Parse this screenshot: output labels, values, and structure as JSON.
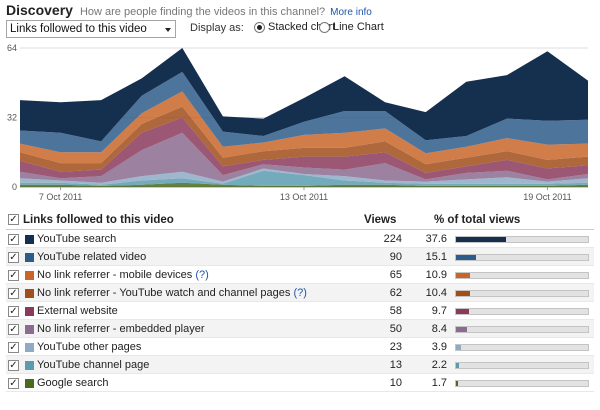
{
  "header": {
    "title": "Discovery",
    "subtitle": "How are people finding the videos in this channel?",
    "more_info": "More info"
  },
  "controls": {
    "dropdown_value": "Links followed to this video",
    "display_label": "Display as:",
    "stacked_label": "Stacked chart",
    "line_label": "Line Chart",
    "selected": "stacked"
  },
  "chart_data": {
    "type": "area",
    "stacked": true,
    "x_ticks": [
      "7 Oct 2011",
      "13 Oct 2011",
      "19 Oct 2011"
    ],
    "y_ticks": [
      "64",
      "32",
      "0"
    ],
    "ylim": [
      0,
      64
    ],
    "grid": true,
    "x": [
      "6 Oct 2011",
      "7 Oct 2011",
      "8 Oct 2011",
      "9 Oct 2011",
      "10 Oct 2011",
      "11 Oct 2011",
      "12 Oct 2011",
      "13 Oct 2011",
      "14 Oct 2011",
      "15 Oct 2011",
      "16 Oct 2011",
      "17 Oct 2011",
      "18 Oct 2011",
      "19 Oct 2011",
      "20 Oct 2011"
    ],
    "series": [
      {
        "name": "Google search",
        "color": "#4a6a1e",
        "values": [
          1,
          1,
          0.5,
          1,
          2,
          1,
          0.5,
          0.5,
          1,
          1,
          0.5,
          0.5,
          0.5,
          0.5,
          1
        ]
      },
      {
        "name": "YouTube channel page",
        "color": "#5a9bb0",
        "values": [
          1,
          1,
          0.5,
          2,
          2,
          0.5,
          7,
          5,
          2,
          1,
          1,
          1,
          1,
          1,
          1
        ]
      },
      {
        "name": "YouTube other pages",
        "color": "#8eaac4",
        "values": [
          2,
          1,
          1,
          2,
          3,
          1,
          1,
          0.5,
          2,
          1,
          1,
          2,
          3,
          1,
          2
        ]
      },
      {
        "name": "No link referrer - embedded player",
        "color": "#8b6b8f",
        "values": [
          3,
          1,
          3,
          12,
          18,
          3,
          2,
          3,
          3,
          8,
          1,
          3,
          3,
          1,
          2
        ]
      },
      {
        "name": "External website",
        "color": "#8a3a5a",
        "values": [
          5,
          3,
          3,
          8,
          7,
          4,
          2,
          5,
          6,
          5,
          3,
          3,
          5,
          5,
          4
        ]
      },
      {
        "name": "No link referrer - YouTube watch and channel pages",
        "color": "#a04e1a",
        "values": [
          4,
          4,
          3,
          4,
          5,
          4,
          4,
          4,
          4,
          5,
          4,
          4,
          4,
          4,
          4
        ]
      },
      {
        "name": "No link referrer - mobile devices",
        "color": "#c8662a",
        "values": [
          4,
          5,
          5,
          5,
          7,
          5,
          4,
          6,
          7,
          6,
          5,
          5,
          6,
          7,
          6
        ]
      },
      {
        "name": "YouTube related video",
        "color": "#2e5c8a",
        "values": [
          6,
          9,
          5,
          8,
          9,
          7,
          3,
          6,
          10,
          8,
          6,
          5,
          9,
          11,
          11
        ]
      },
      {
        "name": "YouTube search",
        "color": "#15304e",
        "values": [
          14,
          14,
          19,
          8,
          11,
          7,
          8,
          11,
          16,
          4,
          13,
          25,
          20,
          32,
          18
        ]
      }
    ]
  },
  "table": {
    "header": {
      "name": "Links followed to this video",
      "views": "Views",
      "pct": "% of total views"
    },
    "rows": [
      {
        "name": "YouTube search",
        "views": "224",
        "pct": "37.6",
        "color": "#15304e",
        "fraction": 0.376,
        "help": ""
      },
      {
        "name": "YouTube related video",
        "views": "90",
        "pct": "15.1",
        "color": "#2e5c8a",
        "fraction": 0.151,
        "help": ""
      },
      {
        "name": "No link referrer - mobile devices",
        "views": "65",
        "pct": "10.9",
        "color": "#c8662a",
        "fraction": 0.109,
        "help": "(?)"
      },
      {
        "name": "No link referrer - YouTube watch and channel pages",
        "views": "62",
        "pct": "10.4",
        "color": "#a04e1a",
        "fraction": 0.104,
        "help": "(?)"
      },
      {
        "name": "External website",
        "views": "58",
        "pct": "9.7",
        "color": "#8a3a5a",
        "fraction": 0.097,
        "help": ""
      },
      {
        "name": "No link referrer - embedded player",
        "views": "50",
        "pct": "8.4",
        "color": "#8b6b8f",
        "fraction": 0.084,
        "help": ""
      },
      {
        "name": "YouTube other pages",
        "views": "23",
        "pct": "3.9",
        "color": "#8eaac4",
        "fraction": 0.039,
        "help": ""
      },
      {
        "name": "YouTube channel page",
        "views": "13",
        "pct": "2.2",
        "color": "#5a9bb0",
        "fraction": 0.022,
        "help": ""
      },
      {
        "name": "Google search",
        "views": "10",
        "pct": "1.7",
        "color": "#4a6a1e",
        "fraction": 0.017,
        "help": ""
      }
    ]
  }
}
